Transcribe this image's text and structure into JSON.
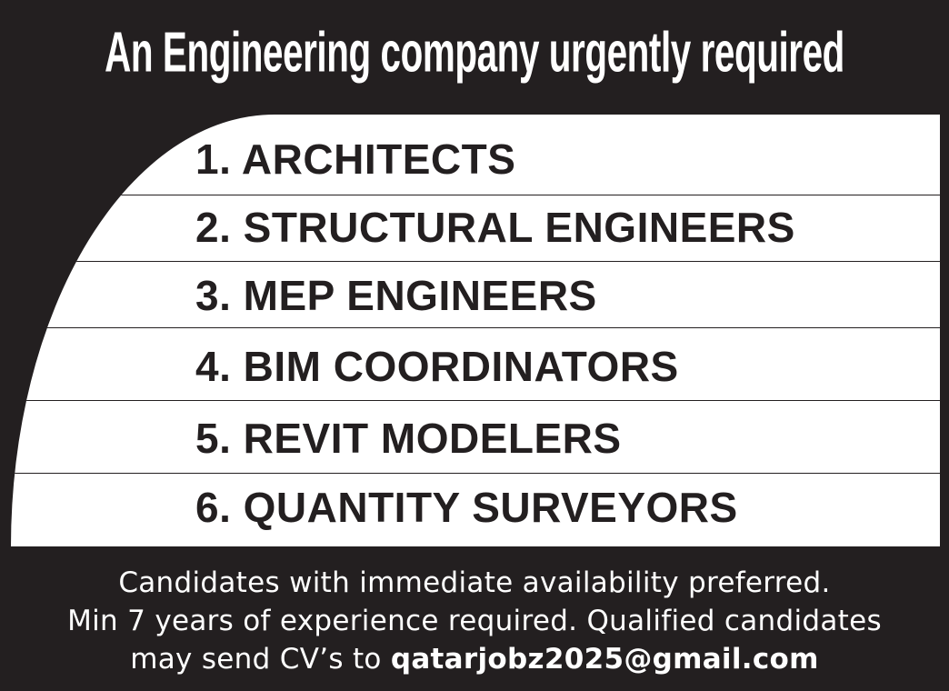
{
  "headline": "An Engineering company urgently required",
  "positions": [
    {
      "label": "1. ARCHITECTS"
    },
    {
      "label": "2. STRUCTURAL ENGINEERS"
    },
    {
      "label": "3. MEP ENGINEERS"
    },
    {
      "label": "4. BIM COORDINATORS"
    },
    {
      "label": "5. REVIT MODELERS"
    },
    {
      "label": "6. QUANTITY SURVEYORS"
    }
  ],
  "footer": {
    "line1": "Candidates with immediate availability preferred.",
    "line2": "Min 7 years of experience required. Qualified candidates",
    "line3_prefix": "may send CV’s to ",
    "email": "qatarjobz2025@gmail.com"
  },
  "colors": {
    "background": "#231f20",
    "panel": "#ffffff",
    "text_dark": "#231f20",
    "text_light": "#ffffff"
  }
}
